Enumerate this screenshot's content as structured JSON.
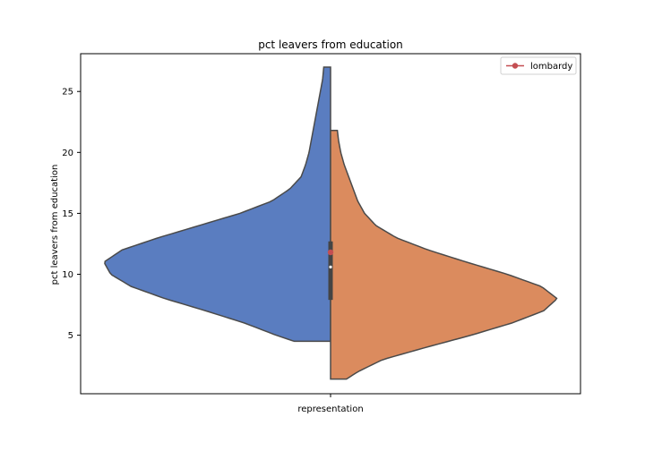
{
  "chart_data": {
    "type": "violin",
    "title": "pct leavers from education",
    "xlabel": "",
    "ylabel": "pct leavers from education",
    "categories": [
      "representation"
    ],
    "ylim": [
      0.2,
      28.1
    ],
    "y_ticks": [
      5,
      10,
      15,
      20,
      25
    ],
    "grid": false,
    "legend": {
      "placement": "top-right",
      "entries": [
        "lombardy"
      ]
    },
    "series": [
      {
        "side": "left",
        "color": "#5a7dc0",
        "clip": [
          4.5,
          27.0
        ],
        "density_profile": [
          [
            4.5,
            0.16
          ],
          [
            5.0,
            0.24
          ],
          [
            6.0,
            0.38
          ],
          [
            7.0,
            0.55
          ],
          [
            8.0,
            0.73
          ],
          [
            9.0,
            0.88
          ],
          [
            10.0,
            0.97
          ],
          [
            11.0,
            1.0
          ],
          [
            12.0,
            0.92
          ],
          [
            13.0,
            0.76
          ],
          [
            14.0,
            0.58
          ],
          [
            15.0,
            0.4
          ],
          [
            16.0,
            0.26
          ],
          [
            17.0,
            0.18
          ],
          [
            18.0,
            0.13
          ],
          [
            19.0,
            0.11
          ],
          [
            20.0,
            0.095
          ],
          [
            21.0,
            0.085
          ],
          [
            22.0,
            0.075
          ],
          [
            23.0,
            0.065
          ],
          [
            24.0,
            0.055
          ],
          [
            25.0,
            0.045
          ],
          [
            26.0,
            0.035
          ],
          [
            27.0,
            0.03
          ]
        ]
      },
      {
        "side": "right",
        "color": "#db8b5e",
        "clip": [
          1.4,
          21.8
        ],
        "density_profile": [
          [
            1.4,
            0.07
          ],
          [
            2.0,
            0.12
          ],
          [
            3.0,
            0.23
          ],
          [
            4.0,
            0.42
          ],
          [
            5.0,
            0.62
          ],
          [
            6.0,
            0.8
          ],
          [
            7.0,
            0.94
          ],
          [
            8.0,
            1.0
          ],
          [
            9.0,
            0.93
          ],
          [
            10.0,
            0.78
          ],
          [
            11.0,
            0.6
          ],
          [
            12.0,
            0.43
          ],
          [
            13.0,
            0.29
          ],
          [
            14.0,
            0.2
          ],
          [
            15.0,
            0.15
          ],
          [
            16.0,
            0.12
          ],
          [
            17.0,
            0.1
          ],
          [
            18.0,
            0.08
          ],
          [
            19.0,
            0.06
          ],
          [
            20.0,
            0.045
          ],
          [
            21.0,
            0.035
          ],
          [
            21.8,
            0.03
          ]
        ]
      }
    ],
    "box": {
      "q1": 7.9,
      "median": 10.6,
      "q3": 12.7,
      "color": "#444444"
    },
    "point": {
      "label": "lombardy",
      "value": 11.8,
      "color": "#c44e52"
    }
  }
}
